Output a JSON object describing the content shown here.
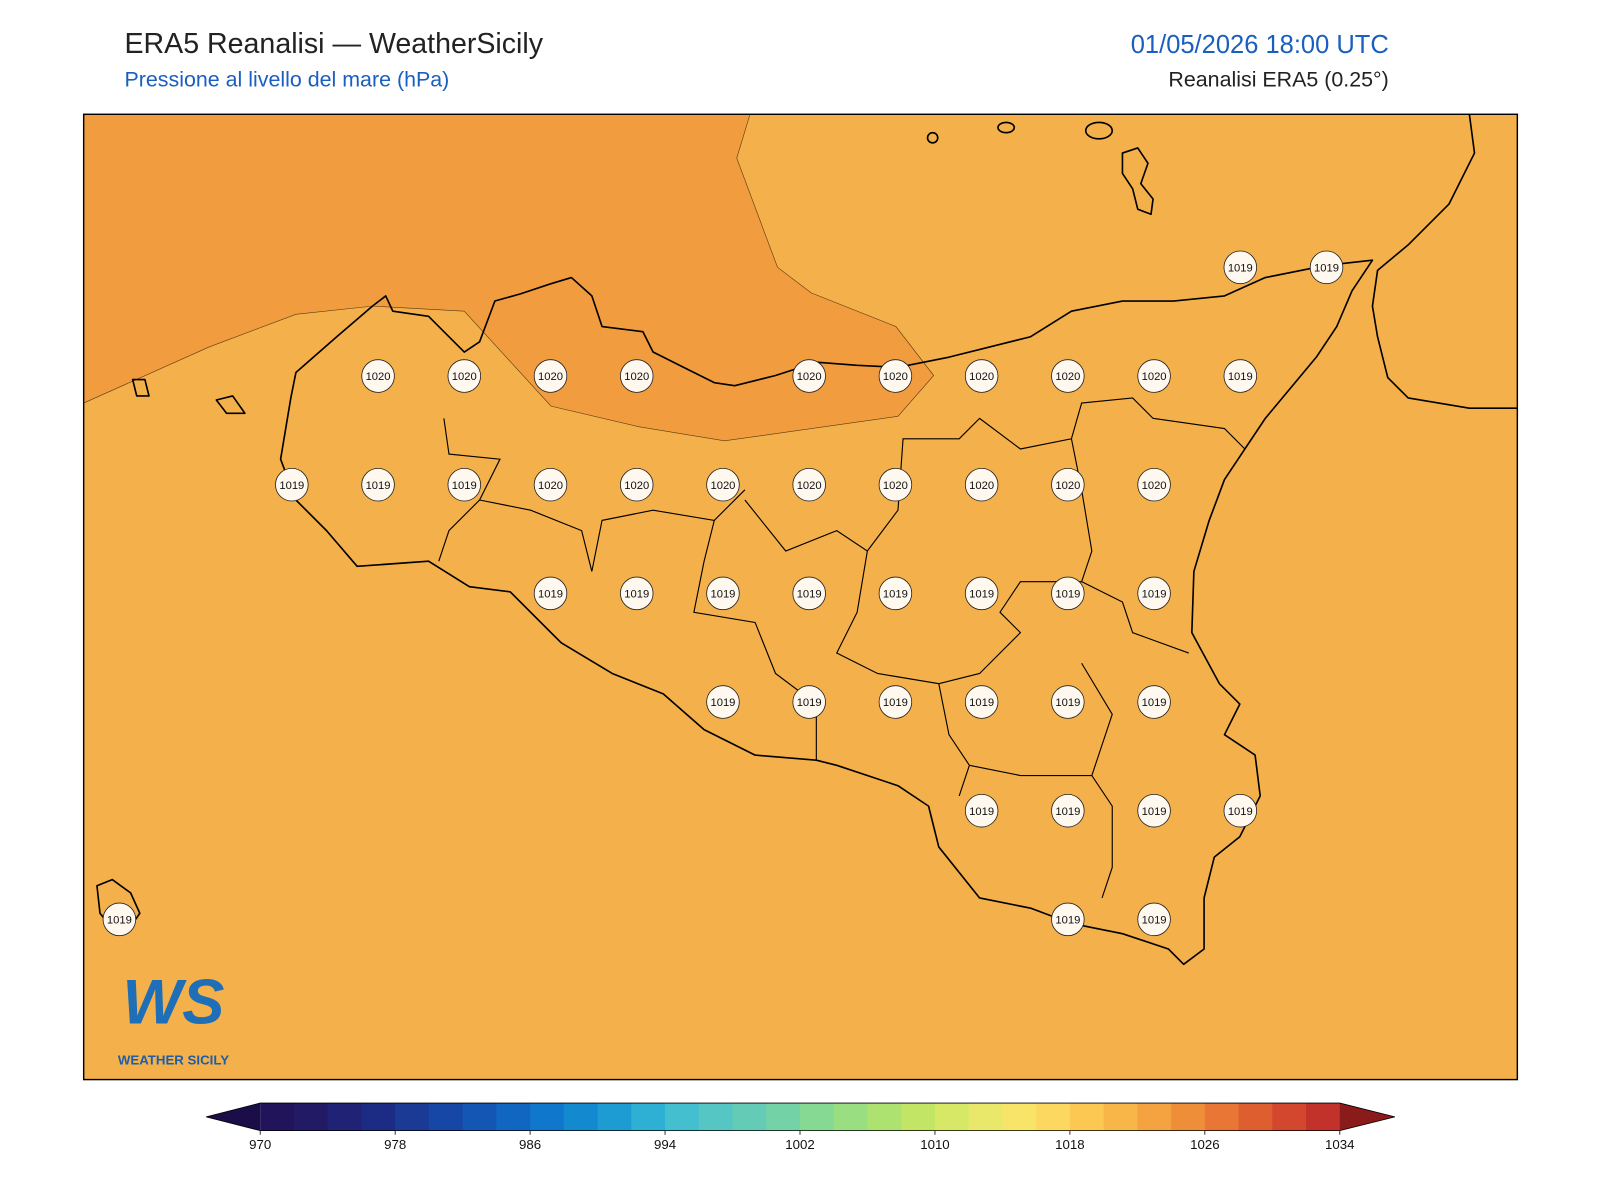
{
  "header": {
    "title": "ERA5 Reanalisi — WeatherSicily",
    "subtitle": "Pressione al livello del mare (hPa)",
    "datetime": "01/05/2026 18:00 UTC",
    "source": "Reanalisi ERA5 (0.25°)"
  },
  "map": {
    "grid_values": [
      [
        null,
        null,
        null,
        null,
        null,
        null,
        null,
        null,
        null,
        null,
        null,
        null,
        null,
        1019,
        1019
      ],
      [
        null,
        null,
        null,
        1020,
        1020,
        1020,
        1020,
        null,
        1020,
        1020,
        1020,
        1020,
        1020,
        1019,
        null
      ],
      [
        null,
        null,
        1019,
        1019,
        1019,
        1020,
        1020,
        1020,
        1020,
        1020,
        1020,
        1020,
        1020,
        null,
        null
      ],
      [
        null,
        null,
        null,
        null,
        null,
        1019,
        1019,
        1019,
        1019,
        1019,
        1019,
        1019,
        1019,
        null,
        null
      ],
      [
        null,
        null,
        null,
        null,
        null,
        null,
        null,
        1019,
        1019,
        1019,
        1019,
        1019,
        1019,
        null,
        null
      ],
      [
        null,
        null,
        null,
        null,
        null,
        null,
        null,
        null,
        null,
        null,
        1019,
        1019,
        1019,
        1019,
        null
      ],
      [
        1019,
        null,
        null,
        null,
        null,
        null,
        null,
        null,
        null,
        null,
        null,
        1019,
        1019,
        null,
        null
      ]
    ],
    "logo": {
      "mark": "WS",
      "name": "WEATHER SICILY"
    }
  },
  "colorbar": {
    "clim": [
      970,
      1034
    ],
    "ticks": [
      970,
      978,
      986,
      994,
      1002,
      1010,
      1018,
      1026,
      1034
    ],
    "colors": [
      "#21145a",
      "#231a66",
      "#1f2275",
      "#1c2c85",
      "#1a3a96",
      "#1747a6",
      "#1456b4",
      "#1166c2",
      "#0f78cc",
      "#138ad0",
      "#1d9cd4",
      "#2eb0d4",
      "#43bfd0",
      "#55c6c4",
      "#64ccb6",
      "#74d3a6",
      "#86d993",
      "#99de80",
      "#aee270",
      "#c3e565",
      "#d6e866",
      "#e9e86a",
      "#f9e46a",
      "#fcd860",
      "#fcc852",
      "#f8b648",
      "#f4a340",
      "#ef8e39",
      "#e97634",
      "#df5e30",
      "#d2472d",
      "#c3322a"
    ],
    "under_color": "#1b0e48",
    "over_color": "#8b1a1a"
  }
}
